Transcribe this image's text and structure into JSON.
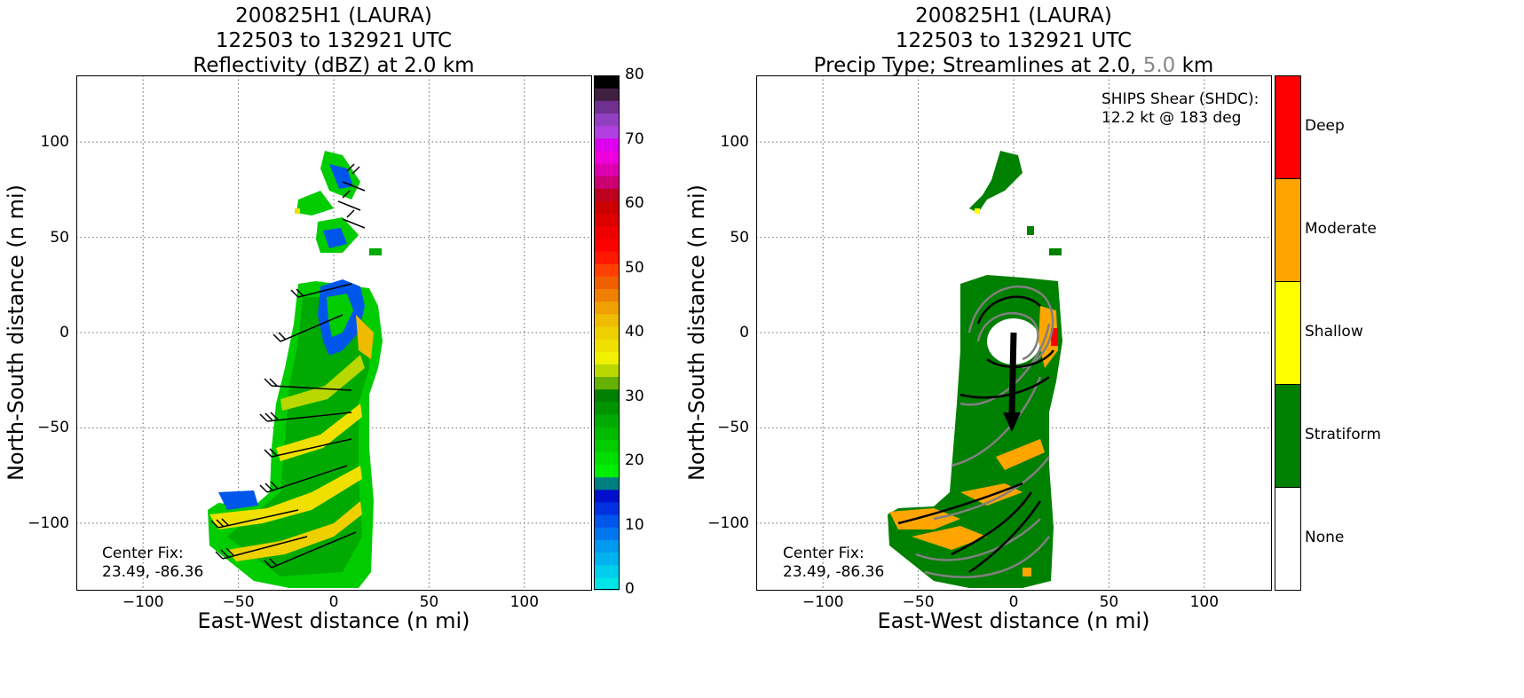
{
  "left_panel": {
    "title_line1": "200825H1 (LAURA)",
    "title_line2": "122503 to 132921 UTC",
    "title_line3": "Reflectivity (dBZ) at 2.0 km",
    "center_fix_label": "Center Fix:",
    "center_fix_value": "23.49, -86.36"
  },
  "right_panel": {
    "title_line1": "200825H1 (LAURA)",
    "title_line2": "122503 to 132921 UTC",
    "title_line3_prefix": "Precip Type; Streamlines at 2.0,",
    "title_line3_grey": "5.0",
    "title_line3_suffix": "km",
    "shear_label": "SHIPS Shear (SHDC):",
    "shear_value": "12.2 kt @ 183 deg",
    "center_fix_label": "Center Fix:",
    "center_fix_value": "23.49, -86.36"
  },
  "colors": {
    "stratiform": "#008000",
    "shallow": "#ffff00",
    "moderate": "#ffa500",
    "deep": "#ff0000",
    "none": "#ffffff",
    "streamline_grey": "#808080"
  },
  "chart_data": [
    {
      "type": "heatmap",
      "title": "200825H1 (LAURA) 122503 to 132921 UTC Reflectivity (dBZ) at 2.0 km",
      "xlabel": "East-West distance (n mi)",
      "ylabel": "North-South distance (n mi)",
      "xlim": [
        -135,
        135
      ],
      "ylim": [
        -135,
        135
      ],
      "xticks": [
        "−100",
        "−50",
        "0",
        "50",
        "100"
      ],
      "xtick_values": [
        -100,
        -50,
        0,
        50,
        100
      ],
      "yticks": [
        "100",
        "50",
        "0",
        "−50",
        "−100"
      ],
      "ytick_values": [
        100,
        50,
        0,
        -50,
        -100
      ],
      "grid": true,
      "colorbar": {
        "label_values": [
          0,
          10,
          20,
          30,
          40,
          50,
          60,
          70,
          80
        ],
        "labels": [
          "0",
          "10",
          "20",
          "30",
          "40",
          "50",
          "60",
          "70",
          "80"
        ],
        "colors": [
          "#00e5e5",
          "#00ccee",
          "#00b2f0",
          "#0099f0",
          "#0077ee",
          "#0055ea",
          "#0030e0",
          "#0010cc",
          "#007f7f",
          "#00ee00",
          "#00dd00",
          "#00cc00",
          "#00bb00",
          "#00aa00",
          "#009500",
          "#008000",
          "#66b000",
          "#b8d800",
          "#f0f000",
          "#f0e000",
          "#eed000",
          "#eebb00",
          "#f0a000",
          "#f08000",
          "#f06000",
          "#ff4000",
          "#ff1800",
          "#ff0000",
          "#ee0000",
          "#dd0000",
          "#cc0000",
          "#bb0020",
          "#cc0070",
          "#dd00b0",
          "#ee00dd",
          "#dd00ee",
          "#b040e0",
          "#9040c0",
          "#703090",
          "#402040",
          "#000000"
        ]
      }
    },
    {
      "type": "heatmap",
      "title": "200825H1 (LAURA) 122503 to 132921 UTC Precip Type; Streamlines at 2.0, 5.0 km",
      "xlabel": "East-West distance (n mi)",
      "ylabel": "North-South distance (n mi)",
      "xlim": [
        -135,
        135
      ],
      "ylim": [
        -135,
        135
      ],
      "xticks": [
        "−100",
        "−50",
        "0",
        "50",
        "100"
      ],
      "xtick_values": [
        -100,
        -50,
        0,
        50,
        100
      ],
      "yticks": [
        "100",
        "50",
        "0",
        "−50",
        "−100"
      ],
      "ytick_values": [
        100,
        50,
        0,
        -50,
        -100
      ],
      "grid": true,
      "categories": [
        "None",
        "Stratiform",
        "Shallow",
        "Moderate",
        "Deep"
      ],
      "shear_vector": {
        "magnitude_kt": 12.2,
        "direction_deg": 183
      }
    }
  ]
}
